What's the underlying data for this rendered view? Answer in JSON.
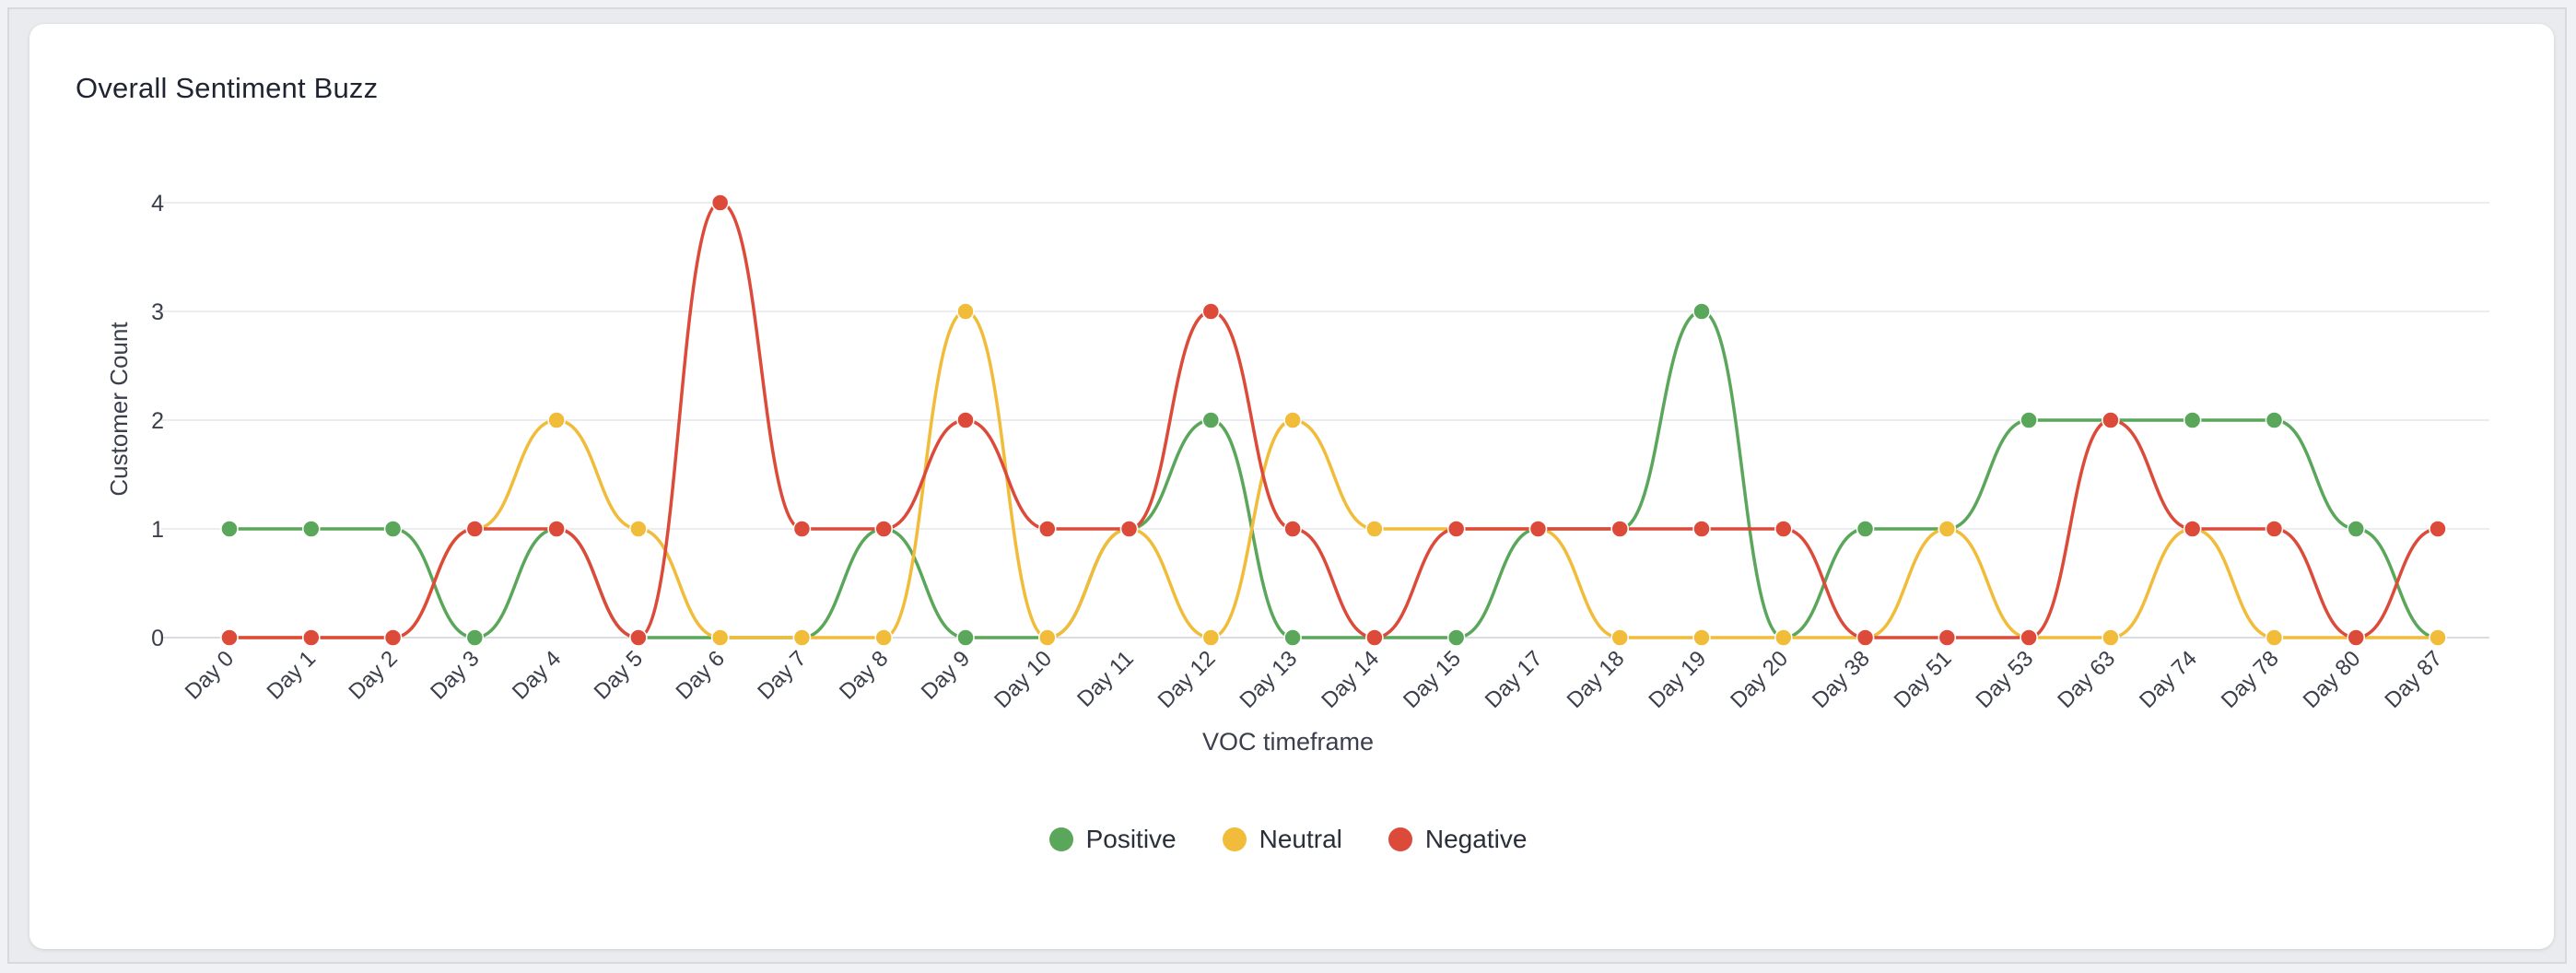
{
  "card": {
    "title": "Overall Sentiment Buzz"
  },
  "chart_data": {
    "type": "line",
    "title": "Overall Sentiment Buzz",
    "xlabel": "VOC timeframe",
    "ylabel": "Customer Count",
    "ylim": [
      0,
      4
    ],
    "yticks": [
      0,
      1,
      2,
      3,
      4
    ],
    "grid": true,
    "smooth": true,
    "legend_position": "bottom-center",
    "categories": [
      "Day 0",
      "Day 1",
      "Day 2",
      "Day 3",
      "Day 4",
      "Day 5",
      "Day 6",
      "Day 7",
      "Day 8",
      "Day 9",
      "Day 10",
      "Day 11",
      "Day 12",
      "Day 13",
      "Day 14",
      "Day 15",
      "Day 17",
      "Day 18",
      "Day 19",
      "Day 20",
      "Day 38",
      "Day 51",
      "Day 53",
      "Day 63",
      "Day 74",
      "Day 78",
      "Day 80",
      "Day 87"
    ],
    "series": [
      {
        "name": "Positive",
        "color": "#5aa65a",
        "values": [
          1,
          1,
          1,
          0,
          1,
          0,
          0,
          0,
          1,
          0,
          0,
          1,
          2,
          0,
          0,
          0,
          1,
          1,
          3,
          0,
          1,
          1,
          2,
          2,
          2,
          2,
          1,
          0
        ]
      },
      {
        "name": "Neutral",
        "color": "#f0bc3a",
        "values": [
          0,
          0,
          0,
          1,
          2,
          1,
          0,
          0,
          0,
          3,
          0,
          1,
          0,
          2,
          1,
          1,
          1,
          0,
          0,
          0,
          0,
          1,
          0,
          0,
          1,
          0,
          0,
          0
        ]
      },
      {
        "name": "Negative",
        "color": "#dc4a3a",
        "values": [
          0,
          0,
          0,
          1,
          1,
          0,
          4,
          1,
          1,
          2,
          1,
          1,
          3,
          1,
          0,
          1,
          1,
          1,
          1,
          1,
          0,
          0,
          0,
          2,
          1,
          1,
          0,
          1
        ]
      }
    ]
  }
}
